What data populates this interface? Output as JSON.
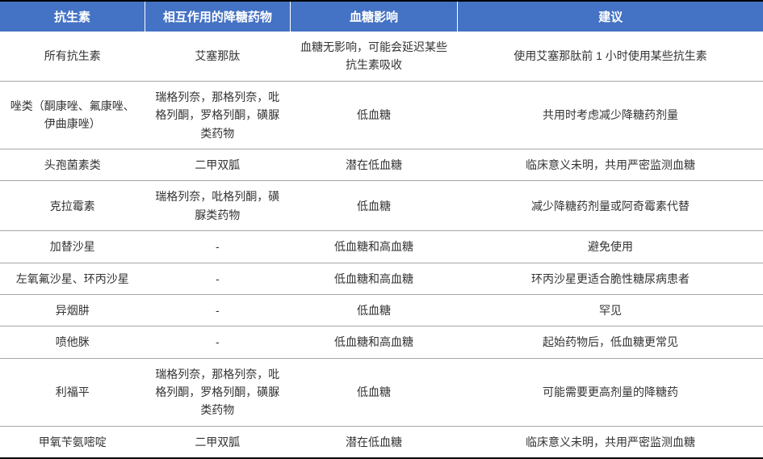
{
  "table": {
    "header_bg": "#4472c4",
    "header_color": "#ffffff",
    "border_color": "#a6a6a6",
    "outer_border_color": "#000000",
    "text_color": "#333333",
    "header_fontsize": 15,
    "cell_fontsize": 14,
    "columns": [
      {
        "label": "抗生素",
        "width": "19%"
      },
      {
        "label": "相互作用的降糖药物",
        "width": "19%"
      },
      {
        "label": "血糖影响",
        "width": "22%"
      },
      {
        "label": "建议",
        "width": "40%"
      }
    ],
    "rows": [
      [
        "所有抗生素",
        "艾塞那肽",
        "血糖无影响，可能会延迟某些抗生素吸收",
        "使用艾塞那肽前 1 小时使用某些抗生素"
      ],
      [
        "唑类（酮康唑、氟康唑、伊曲康唑）",
        "瑞格列奈，那格列奈，吡格列酮，罗格列酮，磺脲类药物",
        "低血糖",
        "共用时考虑减少降糖药剂量"
      ],
      [
        "头孢菌素类",
        "二甲双胍",
        "潜在低血糖",
        "临床意义未明，共用严密监测血糖"
      ],
      [
        "克拉霉素",
        "瑞格列奈，吡格列酮，磺脲类药物",
        "低血糖",
        "减少降糖药剂量或阿奇霉素代替"
      ],
      [
        "加替沙星",
        "-",
        "低血糖和高血糖",
        "避免使用"
      ],
      [
        "左氧氟沙星、环丙沙星",
        "-",
        "低血糖和高血糖",
        "环丙沙星更适合脆性糖尿病患者"
      ],
      [
        "异烟肼",
        "-",
        "低血糖",
        "罕见"
      ],
      [
        "喷他脒",
        "-",
        "低血糖和高血糖",
        "起始药物后，低血糖更常见"
      ],
      [
        "利福平",
        "瑞格列奈，那格列奈，吡格列酮，罗格列酮，磺脲类药物",
        "低血糖",
        "可能需要更高剂量的降糖药"
      ],
      [
        "甲氧苄氨嘧啶",
        "二甲双胍",
        "潜在低血糖",
        "临床意义未明，共用严密监测血糖"
      ]
    ]
  }
}
